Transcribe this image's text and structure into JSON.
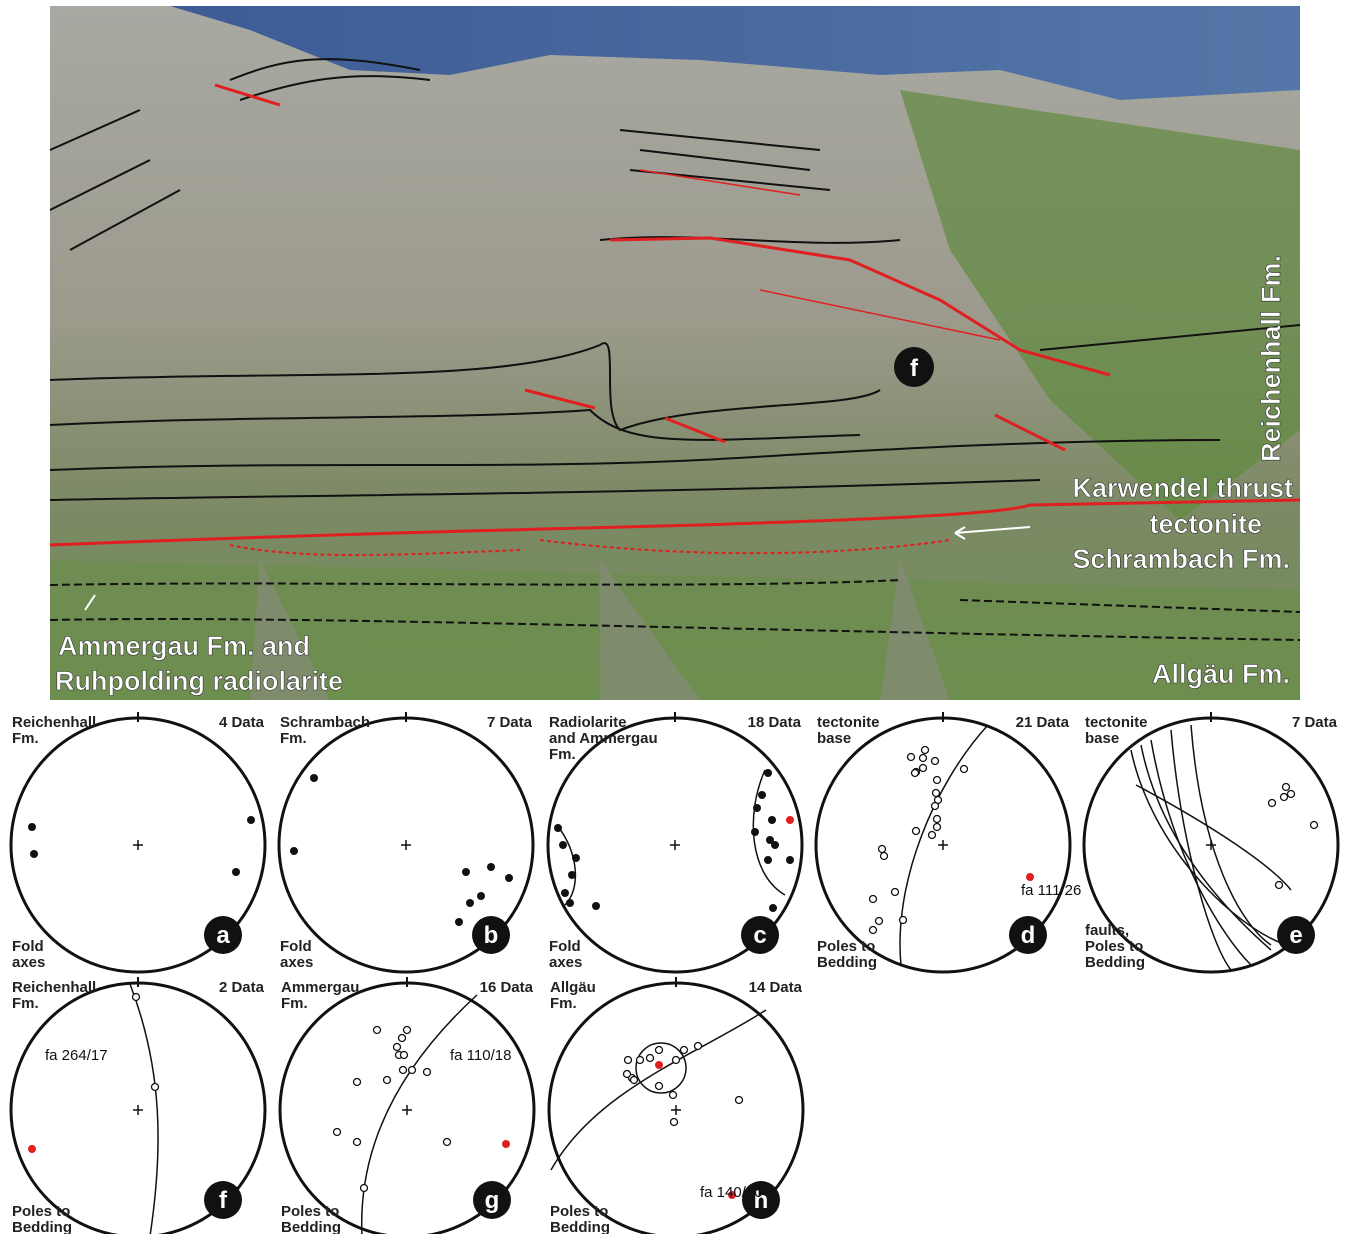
{
  "photo": {
    "labels": {
      "f": "f",
      "reichenhall": "Reichenhall Fm.",
      "karwendel": "Karwendel thrust",
      "tectonite": "tectonite",
      "schrambach": "Schrambach Fm.",
      "ammergau": "Ammergau Fm. and",
      "ruhpolding": "Ruhpolding radiolarite",
      "allgau": "Allgäu Fm."
    }
  },
  "stereonets": [
    {
      "formation": [
        "Reichenhall",
        "Fm."
      ],
      "count": "4 Data",
      "kind": [
        "Fold",
        "axes"
      ],
      "panel": "a"
    },
    {
      "formation": [
        "Schrambach",
        "Fm."
      ],
      "count": "7 Data",
      "kind": [
        "Fold",
        "axes"
      ],
      "panel": "b"
    },
    {
      "formation": [
        "Radiolarite",
        "and Ammergau",
        "Fm."
      ],
      "count": "18 Data",
      "kind": [
        "Fold",
        "axes"
      ],
      "panel": "c"
    },
    {
      "formation": [
        "tectonite",
        "base"
      ],
      "count": "21 Data",
      "kind": [
        "Poles to",
        "Bedding"
      ],
      "panel": "d",
      "fa": "fa 111/26"
    },
    {
      "formation": [
        "tectonite",
        "base"
      ],
      "count": "7 Data",
      "kind": [
        "faults,",
        "Poles to",
        "Bedding"
      ],
      "panel": "e"
    },
    {
      "formation": [
        "Reichenhall",
        "Fm."
      ],
      "count": "2 Data",
      "kind": [
        "Poles to",
        "Bedding"
      ],
      "panel": "f",
      "fa": "fa 264/17"
    },
    {
      "formation": [
        "Ammergau",
        "Fm."
      ],
      "count": "16 Data",
      "kind": [
        "Poles to",
        "Bedding"
      ],
      "panel": "g",
      "fa": "fa 110/18"
    },
    {
      "formation": [
        "Allgäu",
        "Fm."
      ],
      "count": "14 Data",
      "kind": [
        "Poles to",
        "Bedding"
      ],
      "panel": "h",
      "fa": "fa 140/30"
    }
  ]
}
